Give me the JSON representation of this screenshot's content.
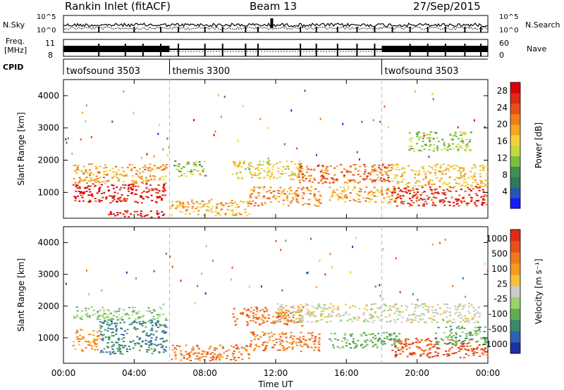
{
  "header": {
    "title": "Rankin Inlet (fitACF)",
    "beam": "Beam 13",
    "date": "27/Sep/2015"
  },
  "panels": {
    "nsky_label": "N.Sky",
    "nsearch_label": "N.Search",
    "nsky_ticks": [
      "10^5",
      "10^0"
    ],
    "nsearch_ticks": [
      "10^5",
      "10^0"
    ],
    "freq_label_top": "Freq.",
    "freq_label_bottom": "[MHz]",
    "freq_ticks": [
      "11",
      "8"
    ],
    "nave_label": "Nave",
    "nave_ticks": [
      "60",
      "0"
    ],
    "cpid_label": "CPID"
  },
  "chart_data": [
    {
      "type": "heatmap",
      "name": "power",
      "ylabel": "Slant Range [km]",
      "xlabel": "Time UT",
      "xlim": [
        0,
        24
      ],
      "ylim": [
        200,
        4500
      ],
      "x_ticks": [
        "00:00",
        "04:00",
        "08:00",
        "12:00",
        "16:00",
        "20:00",
        "00:00"
      ],
      "y_ticks": [
        1000,
        2000,
        3000,
        4000
      ],
      "colorbar": {
        "label": "Power [dB]",
        "ticks": [
          4,
          8,
          12,
          16,
          20,
          24,
          28
        ],
        "range": [
          0,
          30
        ],
        "colors": [
          "#1a1aff",
          "#2a55b0",
          "#2f7a5a",
          "#3f8f55",
          "#7cc040",
          "#c8d640",
          "#f2d03a",
          "#f5a623",
          "#f07d1a",
          "#e8501a",
          "#e02a15",
          "#d8000a"
        ]
      },
      "bands": [
        {
          "t0": 0.5,
          "t1": 5.8,
          "r0": 700,
          "r1": 1300,
          "level": 27
        },
        {
          "t0": 0.5,
          "t1": 5.8,
          "r0": 1300,
          "r1": 1900,
          "level": 19
        },
        {
          "t0": 2.5,
          "t1": 5.8,
          "r0": 250,
          "r1": 450,
          "level": 28
        },
        {
          "t0": 6.0,
          "t1": 10.5,
          "r0": 300,
          "r1": 800,
          "level": 18
        },
        {
          "t0": 6.2,
          "t1": 8.0,
          "r0": 1500,
          "r1": 2000,
          "level": 12
        },
        {
          "t0": 9.5,
          "t1": 13.5,
          "r0": 1400,
          "r1": 2000,
          "level": 15
        },
        {
          "t0": 10.5,
          "t1": 14.5,
          "r0": 600,
          "r1": 1200,
          "level": 20
        },
        {
          "t0": 13.0,
          "t1": 18.5,
          "r0": 1300,
          "r1": 1900,
          "level": 22
        },
        {
          "t0": 15.0,
          "t1": 19.0,
          "r0": 700,
          "r1": 1200,
          "level": 19
        },
        {
          "t0": 18.5,
          "t1": 23.9,
          "r0": 600,
          "r1": 1200,
          "level": 26
        },
        {
          "t0": 18.5,
          "t1": 23.9,
          "r0": 1200,
          "r1": 1900,
          "level": 17
        },
        {
          "t0": 19.5,
          "t1": 23.0,
          "r0": 2300,
          "r1": 2900,
          "level": 12
        }
      ]
    },
    {
      "type": "heatmap",
      "name": "velocity",
      "ylabel": "Slant Range [km]",
      "xlabel": "Time UT",
      "xlim": [
        0,
        24
      ],
      "ylim": [
        200,
        4500
      ],
      "x_ticks": [
        "00:00",
        "04:00",
        "08:00",
        "12:00",
        "16:00",
        "20:00",
        "00:00"
      ],
      "y_ticks": [
        1000,
        2000,
        3000,
        4000
      ],
      "colorbar": {
        "label": "Velocity [m s⁻¹]",
        "ticks": [
          "1000",
          "500",
          "100",
          "25",
          "-25",
          "-100",
          "-500",
          "-1000"
        ],
        "colors": [
          "#2030a0",
          "#3060b8",
          "#3a8a6a",
          "#5fae55",
          "#9dd16a",
          "#cccccc",
          "#f5c23a",
          "#f59a23",
          "#f07a1a",
          "#e8501a",
          "#e02a15"
        ]
      },
      "bands": [
        {
          "t0": 0.5,
          "t1": 2.0,
          "r0": 600,
          "r1": 1300,
          "level": 7
        },
        {
          "t0": 2.0,
          "t1": 5.8,
          "r0": 500,
          "r1": 1600,
          "level": 2
        },
        {
          "t0": 0.5,
          "t1": 5.8,
          "r0": 1600,
          "r1": 2000,
          "level": 4
        },
        {
          "t0": 6.0,
          "t1": 10.5,
          "r0": 300,
          "r1": 800,
          "level": 8
        },
        {
          "t0": 9.5,
          "t1": 13.5,
          "r0": 1400,
          "r1": 2000,
          "level": 8
        },
        {
          "t0": 10.5,
          "t1": 14.5,
          "r0": 600,
          "r1": 1200,
          "level": 8
        },
        {
          "t0": 12.0,
          "t1": 23.5,
          "r0": 1500,
          "r1": 2100,
          "level": 5
        },
        {
          "t0": 15.0,
          "t1": 19.0,
          "r0": 700,
          "r1": 1200,
          "level": 3
        },
        {
          "t0": 18.5,
          "t1": 23.9,
          "r0": 400,
          "r1": 1000,
          "level": 9
        },
        {
          "t0": 21.0,
          "t1": 23.9,
          "r0": 800,
          "r1": 1400,
          "level": 3
        }
      ]
    }
  ],
  "cpid_segments": [
    {
      "label": "twofsound 3503",
      "t0": 0.0,
      "t1": 6.0
    },
    {
      "label": "themis 3300",
      "t0": 6.0,
      "t1": 18.0
    },
    {
      "label": "twofsound 3503",
      "t0": 18.0,
      "t1": 24.0
    }
  ]
}
